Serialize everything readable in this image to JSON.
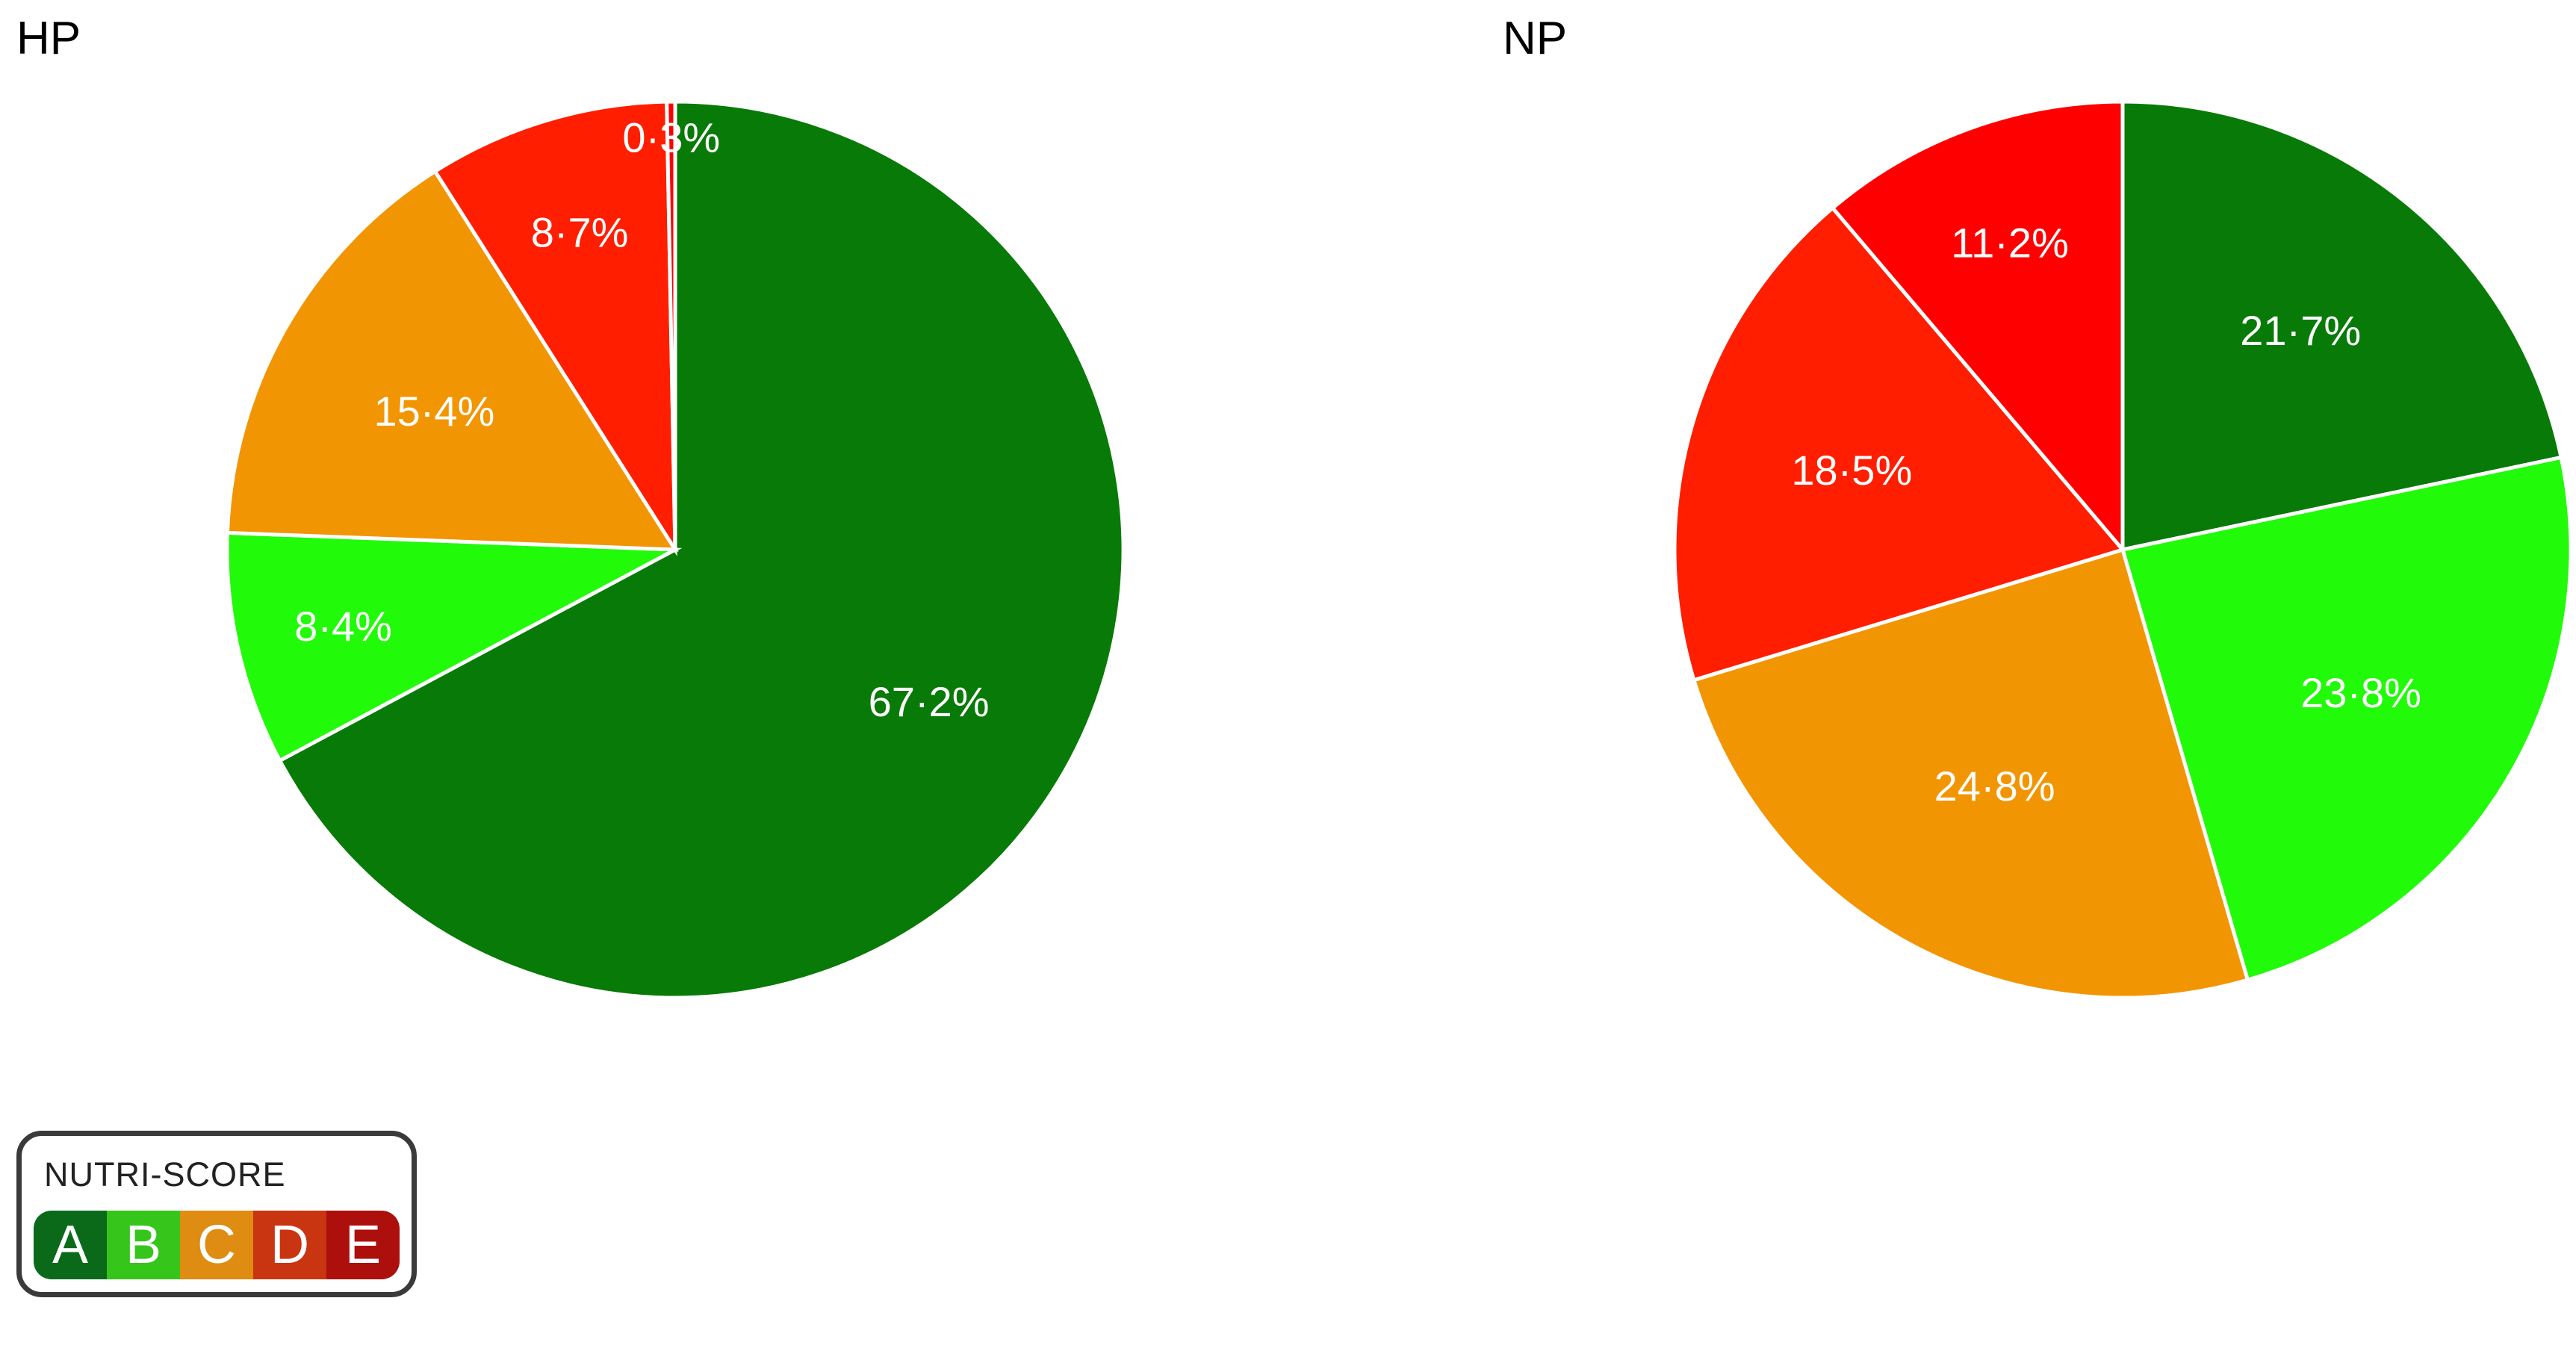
{
  "chart_data": [
    {
      "type": "pie",
      "title": "HP",
      "slices": [
        {
          "grade": "A",
          "value": 67.2,
          "label": "67·2%",
          "color": "#087a07"
        },
        {
          "grade": "B",
          "value": 8.4,
          "label": "8·4%",
          "color": "#21fa09"
        },
        {
          "grade": "C",
          "value": 15.4,
          "label": "15·4%",
          "color": "#f29502"
        },
        {
          "grade": "D",
          "value": 8.7,
          "label": "8·7%",
          "color": "#ff1e00"
        },
        {
          "grade": "E",
          "value": 0.3,
          "label": "0·3%",
          "color": "#ff0000"
        }
      ]
    },
    {
      "type": "pie",
      "title": "NP",
      "slices": [
        {
          "grade": "A",
          "value": 21.7,
          "label": "21·7%",
          "color": "#087a07"
        },
        {
          "grade": "B",
          "value": 23.8,
          "label": "23·8%",
          "color": "#21fa09"
        },
        {
          "grade": "C",
          "value": 24.8,
          "label": "24·8%",
          "color": "#f29502"
        },
        {
          "grade": "D",
          "value": 18.5,
          "label": "18·5%",
          "color": "#ff1e00"
        },
        {
          "grade": "E",
          "value": 11.2,
          "label": "11·2%",
          "color": "#ff0000"
        }
      ]
    }
  ],
  "legend": {
    "title": "NUTRI-SCORE",
    "grades": [
      {
        "letter": "A",
        "color": "#0b6a1a"
      },
      {
        "letter": "B",
        "color": "#35c51b"
      },
      {
        "letter": "C",
        "color": "#de8c12"
      },
      {
        "letter": "D",
        "color": "#c93411"
      },
      {
        "letter": "E",
        "color": "#ad0f0d"
      }
    ]
  }
}
